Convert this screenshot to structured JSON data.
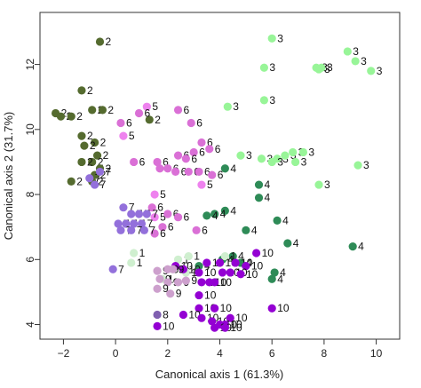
{
  "chart_data": {
    "type": "scatter",
    "title": "",
    "xlabel": "Canonical axis 1 (61.3%)",
    "ylabel": "Canonical axis 2 (31.7%)",
    "xlim": [
      -2.9,
      10.9
    ],
    "ylim": [
      3.55,
      13.6
    ],
    "xticks": [
      -2,
      0,
      2,
      4,
      6,
      8,
      10
    ],
    "yticks": [
      4,
      6,
      8,
      10,
      12
    ],
    "grid": false,
    "legend": "none",
    "colors": {
      "2": "#556b2f",
      "3": "#98f598",
      "4": "#2e8b57",
      "5": "#ee82ee",
      "6": "#da70d6",
      "7": "#9370db",
      "1": "#cfefcf",
      "8": "#8060b0",
      "9": "#cda0cd",
      "10": "#9400d3"
    },
    "points": [
      {
        "x": -0.6,
        "y": 12.7,
        "label": "2"
      },
      {
        "x": -1.3,
        "y": 11.2,
        "label": "2"
      },
      {
        "x": -0.9,
        "y": 10.6,
        "label": "2"
      },
      {
        "x": -0.5,
        "y": 10.6,
        "label": "2"
      },
      {
        "x": -2.3,
        "y": 10.5,
        "label": "2"
      },
      {
        "x": -2.1,
        "y": 10.4,
        "label": "2"
      },
      {
        "x": -1.7,
        "y": 10.4,
        "label": "2"
      },
      {
        "x": -1.3,
        "y": 9.8,
        "label": "2"
      },
      {
        "x": -0.8,
        "y": 9.6,
        "label": "2"
      },
      {
        "x": -1.2,
        "y": 9.5,
        "label": "2"
      },
      {
        "x": -0.7,
        "y": 9.2,
        "label": "2"
      },
      {
        "x": -0.9,
        "y": 9.0,
        "label": "2"
      },
      {
        "x": -1.3,
        "y": 9.0,
        "label": "2"
      },
      {
        "x": -0.6,
        "y": 8.8,
        "label": "2"
      },
      {
        "x": -0.8,
        "y": 8.6,
        "label": "2"
      },
      {
        "x": -1.7,
        "y": 8.4,
        "label": "2"
      },
      {
        "x": -0.9,
        "y": 8.4,
        "label": "2"
      },
      {
        "x": -1.0,
        "y": 8.5,
        "label": "7"
      },
      {
        "x": -0.6,
        "y": 8.7,
        "label": "7"
      },
      {
        "x": -0.8,
        "y": 8.3,
        "label": "7"
      },
      {
        "x": 1.3,
        "y": 10.3,
        "label": "2"
      },
      {
        "x": 6.0,
        "y": 12.8,
        "label": "3"
      },
      {
        "x": 8.9,
        "y": 12.4,
        "label": "3"
      },
      {
        "x": 9.2,
        "y": 12.1,
        "label": "3"
      },
      {
        "x": 7.7,
        "y": 11.9,
        "label": "3"
      },
      {
        "x": 7.9,
        "y": 11.9,
        "label": "3"
      },
      {
        "x": 7.8,
        "y": 11.85,
        "label": "3"
      },
      {
        "x": 9.8,
        "y": 11.8,
        "label": "3"
      },
      {
        "x": 5.7,
        "y": 11.9,
        "label": "3"
      },
      {
        "x": 5.7,
        "y": 10.9,
        "label": "3"
      },
      {
        "x": 4.3,
        "y": 10.7,
        "label": "3"
      },
      {
        "x": 4.8,
        "y": 9.2,
        "label": "3"
      },
      {
        "x": 5.6,
        "y": 9.1,
        "label": "3"
      },
      {
        "x": 6.2,
        "y": 9.1,
        "label": "3"
      },
      {
        "x": 6.5,
        "y": 9.2,
        "label": "3"
      },
      {
        "x": 6.8,
        "y": 9.3,
        "label": "3"
      },
      {
        "x": 7.2,
        "y": 9.3,
        "label": "3"
      },
      {
        "x": 6.0,
        "y": 9.0,
        "label": "3"
      },
      {
        "x": 6.9,
        "y": 9.0,
        "label": "3"
      },
      {
        "x": 9.3,
        "y": 8.9,
        "label": "3"
      },
      {
        "x": 7.8,
        "y": 8.3,
        "label": "3"
      },
      {
        "x": 1.2,
        "y": 10.7,
        "label": "5"
      },
      {
        "x": 0.9,
        "y": 10.5,
        "label": "6"
      },
      {
        "x": 2.4,
        "y": 10.6,
        "label": "6"
      },
      {
        "x": 0.2,
        "y": 10.2,
        "label": "6"
      },
      {
        "x": 2.9,
        "y": 10.2,
        "label": "6"
      },
      {
        "x": 0.3,
        "y": 9.8,
        "label": "5"
      },
      {
        "x": 3.3,
        "y": 9.6,
        "label": "6"
      },
      {
        "x": 3.6,
        "y": 9.4,
        "label": "6"
      },
      {
        "x": 3.0,
        "y": 9.3,
        "label": "6"
      },
      {
        "x": 2.4,
        "y": 9.2,
        "label": "6"
      },
      {
        "x": 2.7,
        "y": 9.1,
        "label": "6"
      },
      {
        "x": 0.7,
        "y": 9.0,
        "label": "6"
      },
      {
        "x": 1.6,
        "y": 9.0,
        "label": "6"
      },
      {
        "x": 1.7,
        "y": 8.8,
        "label": "6"
      },
      {
        "x": 2.0,
        "y": 8.8,
        "label": "6"
      },
      {
        "x": 2.3,
        "y": 8.7,
        "label": "6"
      },
      {
        "x": 2.8,
        "y": 8.7,
        "label": "6"
      },
      {
        "x": 3.2,
        "y": 8.7,
        "label": "6"
      },
      {
        "x": 3.7,
        "y": 8.6,
        "label": "6"
      },
      {
        "x": 3.3,
        "y": 8.3,
        "label": "5"
      },
      {
        "x": 1.5,
        "y": 8.0,
        "label": "5"
      },
      {
        "x": 1.4,
        "y": 7.6,
        "label": "6"
      },
      {
        "x": 1.5,
        "y": 7.3,
        "label": "5"
      },
      {
        "x": 2.0,
        "y": 7.4,
        "label": "6"
      },
      {
        "x": 2.4,
        "y": 7.3,
        "label": "6"
      },
      {
        "x": 1.8,
        "y": 7.0,
        "label": "6"
      },
      {
        "x": 1.5,
        "y": 6.8,
        "label": "6"
      },
      {
        "x": 3.1,
        "y": 6.9,
        "label": "6"
      },
      {
        "x": 4.2,
        "y": 8.8,
        "label": "4"
      },
      {
        "x": 5.5,
        "y": 8.3,
        "label": "4"
      },
      {
        "x": 5.5,
        "y": 7.9,
        "label": "4"
      },
      {
        "x": 4.2,
        "y": 7.5,
        "label": "4"
      },
      {
        "x": 3.8,
        "y": 7.4,
        "label": "4"
      },
      {
        "x": 3.5,
        "y": 7.35,
        "label": "4"
      },
      {
        "x": 6.2,
        "y": 7.2,
        "label": "4"
      },
      {
        "x": 5.0,
        "y": 6.9,
        "label": "4"
      },
      {
        "x": 6.6,
        "y": 6.5,
        "label": "4"
      },
      {
        "x": 9.1,
        "y": 6.4,
        "label": "4"
      },
      {
        "x": 4.5,
        "y": 6.1,
        "label": "4"
      },
      {
        "x": 4.1,
        "y": 6.0,
        "label": "4"
      },
      {
        "x": 4.8,
        "y": 5.9,
        "label": "4"
      },
      {
        "x": 6.1,
        "y": 5.6,
        "label": "4"
      },
      {
        "x": 6.0,
        "y": 5.4,
        "label": "4"
      },
      {
        "x": 3.2,
        "y": 5.8,
        "label": "4"
      },
      {
        "x": 0.3,
        "y": 7.6,
        "label": "7"
      },
      {
        "x": 0.6,
        "y": 7.4,
        "label": "7"
      },
      {
        "x": 0.9,
        "y": 7.4,
        "label": "7"
      },
      {
        "x": 1.2,
        "y": 7.4,
        "label": "7"
      },
      {
        "x": 0.1,
        "y": 7.1,
        "label": "7"
      },
      {
        "x": 0.4,
        "y": 7.1,
        "label": "7"
      },
      {
        "x": 0.7,
        "y": 7.1,
        "label": "7"
      },
      {
        "x": 1.0,
        "y": 7.1,
        "label": "7"
      },
      {
        "x": 0.2,
        "y": 6.9,
        "label": "7"
      },
      {
        "x": 0.6,
        "y": 6.9,
        "label": "7"
      },
      {
        "x": 1.1,
        "y": 6.9,
        "label": "7"
      },
      {
        "x": -0.1,
        "y": 5.7,
        "label": "7"
      },
      {
        "x": 0.7,
        "y": 6.2,
        "label": "1"
      },
      {
        "x": 0.6,
        "y": 5.9,
        "label": "1"
      },
      {
        "x": 2.4,
        "y": 6.0,
        "label": "1"
      },
      {
        "x": 2.8,
        "y": 6.1,
        "label": "1"
      },
      {
        "x": 2.7,
        "y": 5.6,
        "label": "1"
      },
      {
        "x": 1.8,
        "y": 5.4,
        "label": "1"
      },
      {
        "x": 4.2,
        "y": 6.1,
        "label": "1"
      },
      {
        "x": 2.3,
        "y": 5.8,
        "label": "10"
      },
      {
        "x": 2.6,
        "y": 5.7,
        "label": "10"
      },
      {
        "x": 3.5,
        "y": 5.9,
        "label": "10"
      },
      {
        "x": 4.0,
        "y": 5.9,
        "label": "10"
      },
      {
        "x": 4.6,
        "y": 5.9,
        "label": "10"
      },
      {
        "x": 5.4,
        "y": 6.2,
        "label": "10"
      },
      {
        "x": 5.0,
        "y": 5.8,
        "label": "10"
      },
      {
        "x": 4.1,
        "y": 5.6,
        "label": "10"
      },
      {
        "x": 4.4,
        "y": 5.6,
        "label": "10"
      },
      {
        "x": 4.8,
        "y": 5.55,
        "label": "10"
      },
      {
        "x": 3.2,
        "y": 5.6,
        "label": "10"
      },
      {
        "x": 3.3,
        "y": 5.3,
        "label": "10"
      },
      {
        "x": 3.6,
        "y": 5.3,
        "label": "10"
      },
      {
        "x": 3.8,
        "y": 5.3,
        "label": "10"
      },
      {
        "x": 3.2,
        "y": 4.9,
        "label": "10"
      },
      {
        "x": 3.2,
        "y": 4.5,
        "label": "10"
      },
      {
        "x": 3.8,
        "y": 4.5,
        "label": "10"
      },
      {
        "x": 6.0,
        "y": 4.5,
        "label": "10"
      },
      {
        "x": 2.6,
        "y": 4.3,
        "label": "10"
      },
      {
        "x": 3.3,
        "y": 4.2,
        "label": "10"
      },
      {
        "x": 3.7,
        "y": 4.1,
        "label": "10"
      },
      {
        "x": 4.4,
        "y": 4.2,
        "label": "10"
      },
      {
        "x": 4.0,
        "y": 4.0,
        "label": "10"
      },
      {
        "x": 4.2,
        "y": 4.0,
        "label": "10"
      },
      {
        "x": 3.8,
        "y": 3.9,
        "label": "10"
      },
      {
        "x": 1.6,
        "y": 3.95,
        "label": "10"
      },
      {
        "x": 4.2,
        "y": 3.9,
        "label": "10"
      },
      {
        "x": 1.6,
        "y": 5.65,
        "label": "9"
      },
      {
        "x": 2.0,
        "y": 5.7,
        "label": "9"
      },
      {
        "x": 2.2,
        "y": 5.7,
        "label": "9"
      },
      {
        "x": 1.7,
        "y": 5.4,
        "label": "9"
      },
      {
        "x": 2.0,
        "y": 5.3,
        "label": "9"
      },
      {
        "x": 2.4,
        "y": 5.3,
        "label": "9"
      },
      {
        "x": 1.6,
        "y": 5.1,
        "label": "9"
      },
      {
        "x": 2.1,
        "y": 4.95,
        "label": "9"
      },
      {
        "x": 2.7,
        "y": 5.35,
        "label": "9"
      },
      {
        "x": 1.6,
        "y": 4.3,
        "label": "8"
      }
    ]
  }
}
